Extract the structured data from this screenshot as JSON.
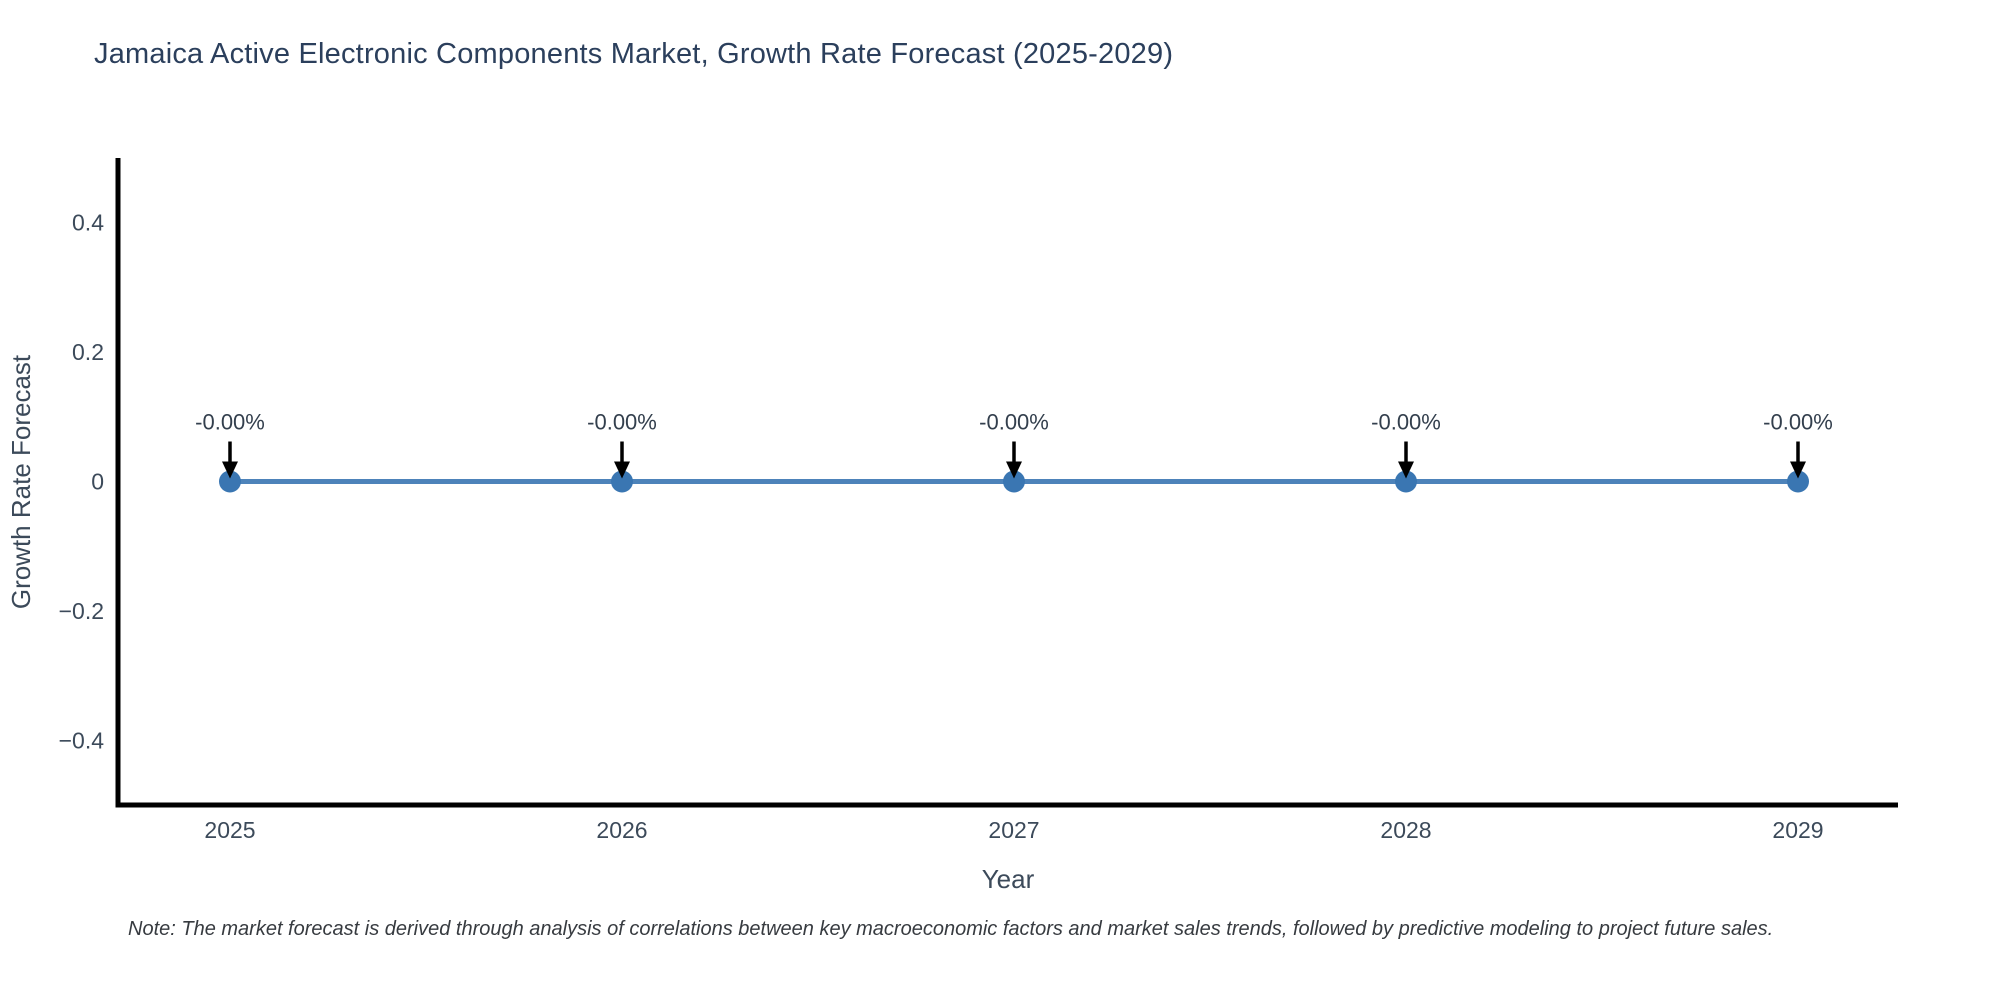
{
  "page": {
    "title": "Jamaica Active Electronic Components Market, Growth Rate Forecast (2025-2029)",
    "note": "Note: The market forecast is derived through analysis of correlations between key macroeconomic factors and market sales trends, followed by predictive modeling to project future sales."
  },
  "chart_data": {
    "type": "line",
    "title": "Jamaica Active Electronic Components Market, Growth Rate Forecast (2025-2029)",
    "xlabel": "Year",
    "ylabel": "Growth Rate Forecast",
    "categories": [
      "2025",
      "2026",
      "2027",
      "2028",
      "2029"
    ],
    "series": [
      {
        "name": "Growth Rate Forecast",
        "values": [
          0,
          0,
          0,
          0,
          0
        ]
      }
    ],
    "point_labels": [
      "-0.00%",
      "-0.00%",
      "-0.00%",
      "-0.00%",
      "-0.00%"
    ],
    "ylim": [
      -0.5,
      0.5
    ],
    "yticks": [
      0.4,
      0.2,
      0,
      -0.2,
      -0.4
    ],
    "ytick_labels": [
      "0.4",
      "0.2",
      "0",
      "−0.2",
      "−0.4"
    ],
    "grid": false,
    "legend": "none",
    "annotation_arrow": "down",
    "colors": {
      "line": "#4d83ba",
      "marker": "#3a76b2",
      "axis": "#000000",
      "tick_text": "#3c4a5a",
      "title_text": "#2b3f5c",
      "annotation_text": "#333f4d",
      "note_text": "#373b40"
    }
  }
}
